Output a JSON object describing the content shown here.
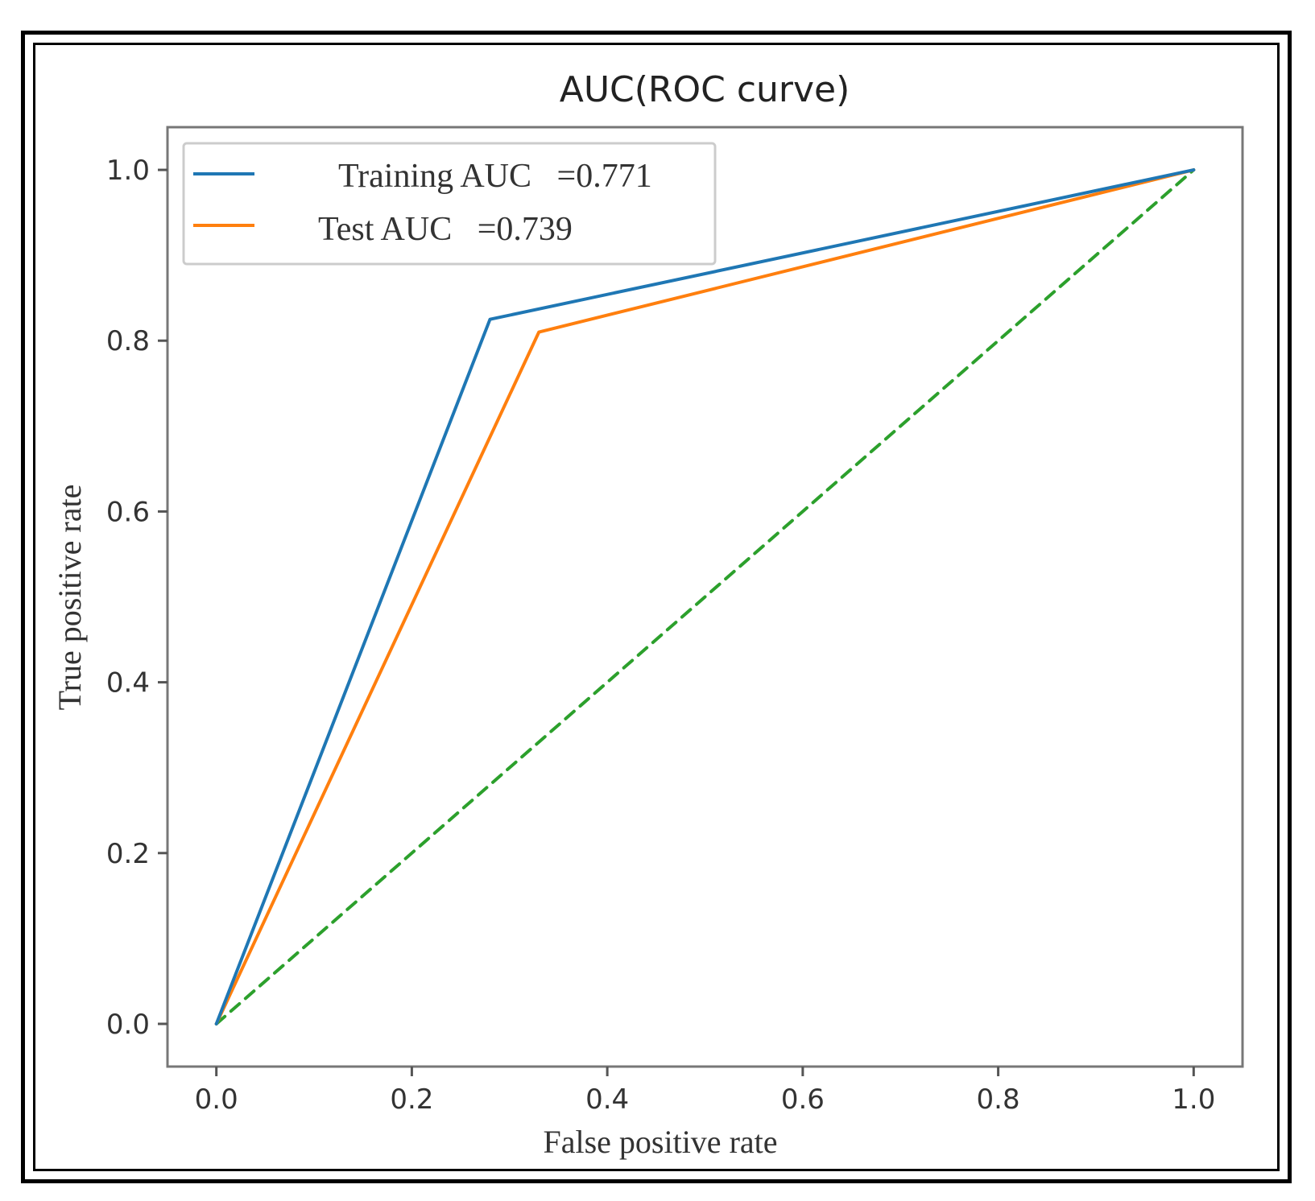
{
  "chart_data": {
    "type": "line",
    "title": "AUC(ROC curve)",
    "xlabel": "False positive rate",
    "ylabel": "True positive rate",
    "xlim": [
      -0.05,
      1.05
    ],
    "ylim": [
      -0.05,
      1.05
    ],
    "xticks": [
      0.0,
      0.2,
      0.4,
      0.6,
      0.8,
      1.0
    ],
    "yticks": [
      0.0,
      0.2,
      0.4,
      0.6,
      0.8,
      1.0
    ],
    "xtick_labels": [
      "0.0",
      "0.2",
      "0.4",
      "0.6",
      "0.8",
      "1.0"
    ],
    "ytick_labels": [
      "0.0",
      "0.2",
      "0.4",
      "0.6",
      "0.8",
      "1.0"
    ],
    "grid": false,
    "legend": "top-left",
    "series": [
      {
        "name": "Training AUC   =0.771",
        "color": "#1f77b4",
        "style": "solid",
        "x": [
          0.0,
          0.28,
          1.0
        ],
        "y": [
          0.0,
          0.825,
          1.0
        ]
      },
      {
        "name": "Test AUC   =0.739",
        "color": "#ff7f0e",
        "style": "solid",
        "x": [
          0.0,
          0.33,
          1.0
        ],
        "y": [
          0.0,
          0.81,
          1.0
        ]
      },
      {
        "color": "#2ca02c",
        "style": "dashed",
        "x": [
          0.0,
          1.0
        ],
        "y": [
          0.0,
          1.0
        ]
      }
    ]
  }
}
